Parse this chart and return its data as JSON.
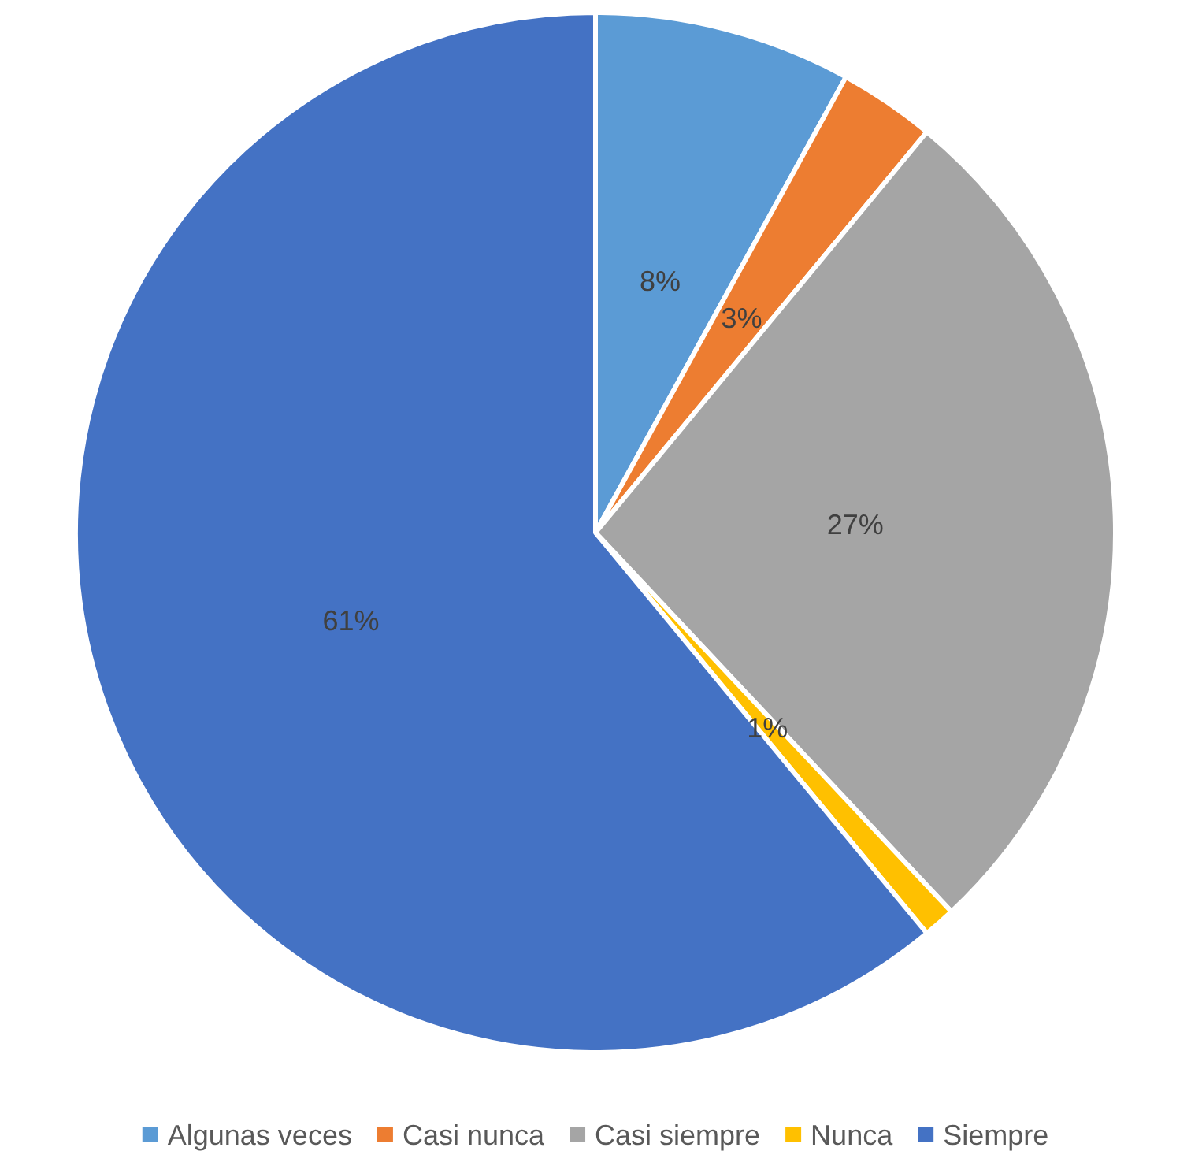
{
  "chart_data": {
    "type": "pie",
    "categories": [
      "Algunas veces",
      "Casi nunca",
      "Casi siempre",
      "Nunca",
      "Siempre"
    ],
    "values": [
      8,
      3,
      27,
      1,
      61
    ],
    "colors": [
      "#5b9bd5",
      "#ed7d31",
      "#a5a5a5",
      "#ffc000",
      "#4472c4"
    ],
    "value_labels": [
      "8%",
      "3%",
      "27%",
      "1%",
      "61%"
    ],
    "legend": "bottom"
  }
}
